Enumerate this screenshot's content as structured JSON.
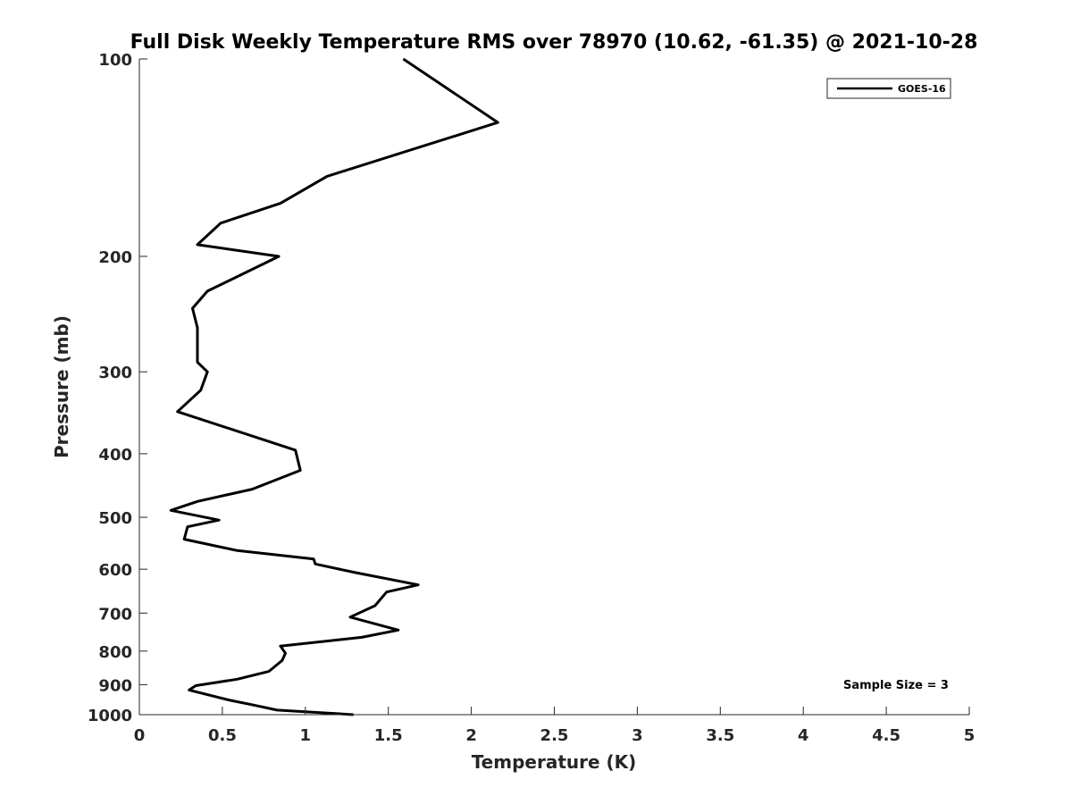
{
  "chart_data": {
    "type": "line",
    "title": "Full Disk Weekly Temperature RMS over 78970 (10.62, -61.35) @ 2021-10-28",
    "xlabel": "Temperature (K)",
    "ylabel": "Pressure (mb)",
    "xlim": [
      0,
      5
    ],
    "ylim": [
      100,
      1000
    ],
    "y_scale": "log",
    "y_reversed": true,
    "xticks": [
      "0",
      "0.5",
      "1",
      "1.5",
      "2",
      "2.5",
      "3",
      "3.5",
      "4",
      "4.5",
      "5"
    ],
    "yticks": [
      "100",
      "200",
      "300",
      "400",
      "500",
      "600",
      "700",
      "800",
      "900",
      "1000"
    ],
    "grid": false,
    "legend_position": "top-right",
    "series": [
      {
        "name": "GOES-16",
        "color": "#000000",
        "x": [
          1.59,
          2.16,
          1.13,
          0.85,
          0.49,
          0.35,
          0.84,
          0.41,
          0.32,
          0.35,
          0.35,
          0.35,
          0.41,
          0.37,
          0.23,
          0.94,
          0.97,
          0.68,
          0.35,
          0.19,
          0.48,
          0.29,
          0.27,
          0.59,
          1.05,
          1.06,
          1.3,
          1.68,
          1.49,
          1.42,
          1.27,
          1.56,
          1.34,
          0.85,
          0.88,
          0.86,
          0.78,
          0.59,
          0.34,
          0.3,
          0.54,
          0.69,
          0.83,
          1.29
        ],
        "y": [
          100,
          125,
          151,
          166,
          178,
          192,
          200,
          226,
          240,
          257,
          272,
          290,
          300,
          320,
          345,
          395,
          424,
          453,
          473,
          488,
          505,
          517,
          540,
          562,
          579,
          589,
          607,
          634,
          650,
          682,
          710,
          743,
          762,
          786,
          806,
          827,
          859,
          883,
          903,
          917,
          950,
          967,
          984,
          1000
        ]
      }
    ],
    "annotation": "Sample Size = 3"
  }
}
